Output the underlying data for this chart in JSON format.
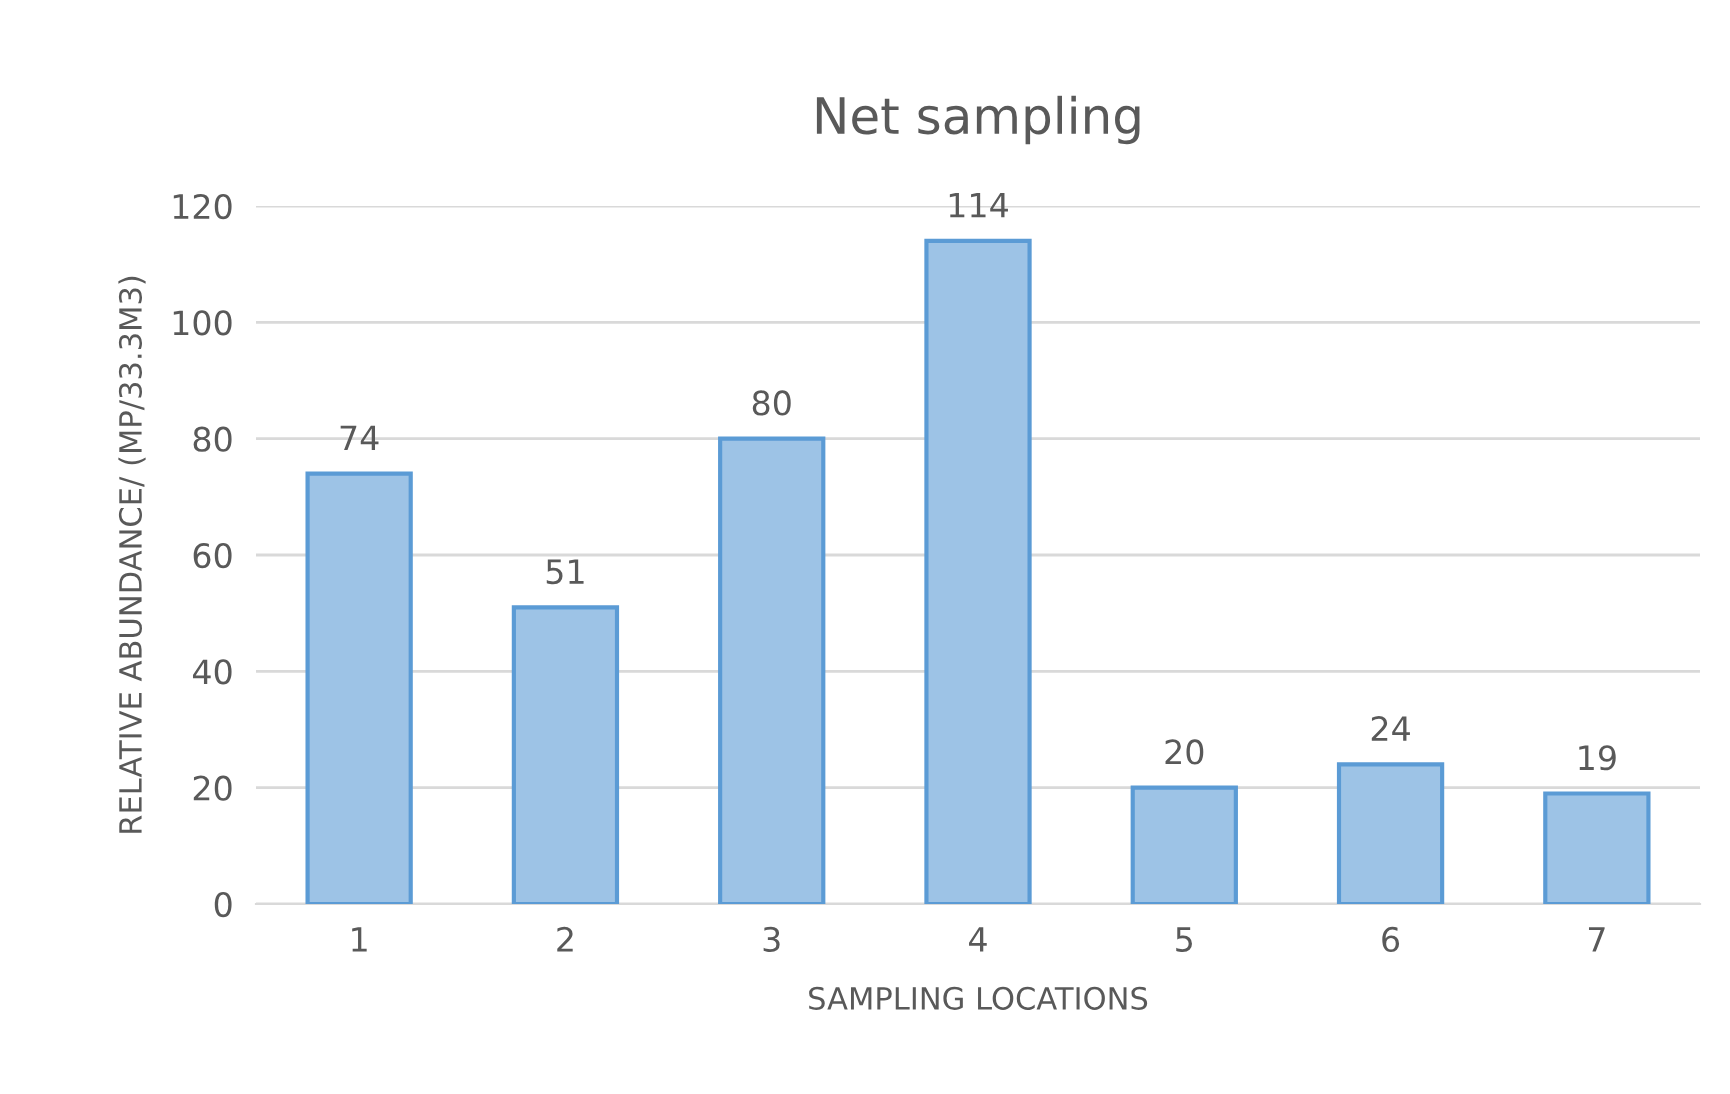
{
  "chart_data": {
    "type": "bar",
    "title": "Net sampling",
    "xlabel": "SAMPLING LOCATIONS",
    "ylabel": "RELATIVE ABUNDANCE/ (MP/33.3M3)",
    "categories": [
      "1",
      "2",
      "3",
      "4",
      "5",
      "6",
      "7"
    ],
    "values": [
      74,
      51,
      80,
      114,
      20,
      24,
      19
    ],
    "color": "#9dc3e6",
    "ylim": [
      0,
      120
    ],
    "yticks": [
      0,
      20,
      40,
      60,
      80,
      100,
      120
    ],
    "grid": "y",
    "data_labels": true,
    "legend": false
  }
}
